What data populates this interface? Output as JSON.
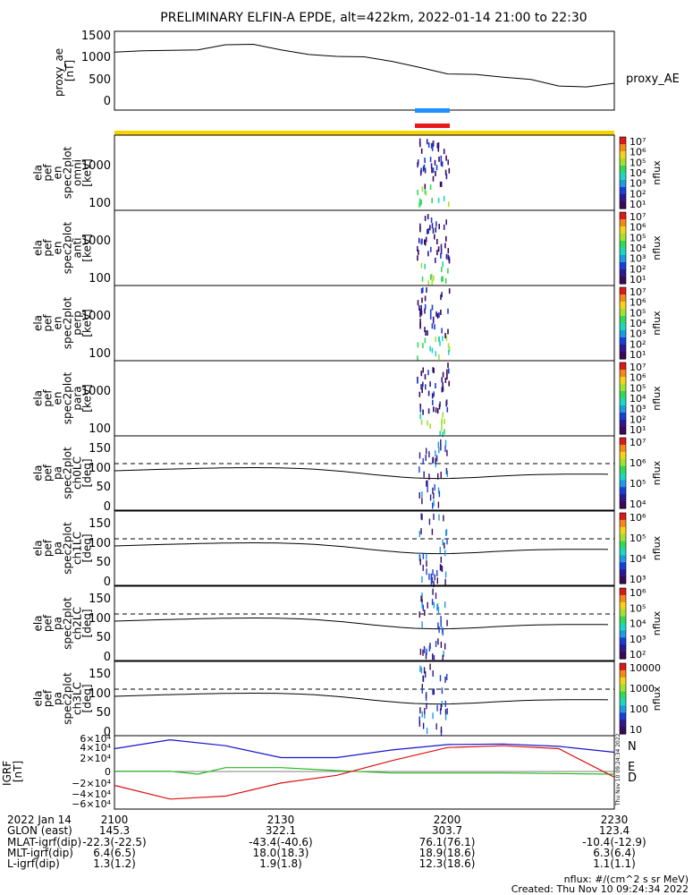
{
  "title": "PRELIMINARY ELFIN-A EPDE, alt=422km, 2022-01-14 21:00 to 22:30",
  "colors": {
    "bar_blue": "#1e90ff",
    "bar_red": "#e81b1b",
    "bar_yellow": "#f5d400",
    "mag_n": "#1515cc",
    "mag_e": "#22bb22",
    "mag_d": "#dd1111"
  },
  "ae_panel": {
    "ylabel_lines": [
      "proxy_ae",
      "[nT]"
    ],
    "yticks": [
      "1500",
      "1000",
      "500",
      "0"
    ],
    "ylim": [
      -100,
      1600
    ],
    "series_label": "proxy_AE"
  },
  "spec_panels": [
    {
      "ylabel_lines": [
        "ela",
        "pef",
        "en",
        "spec2plot",
        "omni",
        "[keV]"
      ],
      "yticks": [
        "1000",
        "100"
      ],
      "cbar_ticks": [
        "10⁷",
        "10⁶",
        "10⁵",
        "10⁴",
        "10³",
        "10²",
        "10¹"
      ],
      "cbar_label": "nflux"
    },
    {
      "ylabel_lines": [
        "ela",
        "pef",
        "en",
        "spec2plot",
        "anti",
        "[keV]"
      ],
      "yticks": [
        "1000",
        "100"
      ],
      "cbar_ticks": [
        "10⁷",
        "10⁶",
        "10⁵",
        "10⁴",
        "10³",
        "10²",
        "10¹"
      ],
      "cbar_label": "nflux"
    },
    {
      "ylabel_lines": [
        "ela",
        "pef",
        "en",
        "spec2plot",
        "perp",
        "[keV]"
      ],
      "yticks": [
        "1000",
        "100"
      ],
      "cbar_ticks": [
        "10⁷",
        "10⁶",
        "10⁵",
        "10⁴",
        "10³",
        "10²",
        "10¹"
      ],
      "cbar_label": "nflux"
    },
    {
      "ylabel_lines": [
        "ela",
        "pef",
        "en",
        "spec2plot",
        "para",
        "[keV]"
      ],
      "yticks": [
        "1000",
        "100"
      ],
      "cbar_ticks": [
        "10⁷",
        "10⁶",
        "10⁵",
        "10⁴",
        "10³",
        "10²",
        "10¹"
      ],
      "cbar_label": "nflux"
    }
  ],
  "pa_panels": [
    {
      "ylabel_lines": [
        "ela",
        "pef",
        "pa",
        "spec2plot",
        "ch0LC",
        "[deg]"
      ],
      "yticks": [
        "150",
        "100",
        "50",
        "0"
      ],
      "cbar_ticks": [
        "10⁷",
        "10⁶",
        "10⁵",
        "10⁴"
      ],
      "cbar_label": "nflux"
    },
    {
      "ylabel_lines": [
        "ela",
        "pef",
        "pa",
        "spec2plot",
        "ch1LC",
        "[deg]"
      ],
      "yticks": [
        "150",
        "100",
        "50",
        "0"
      ],
      "cbar_ticks": [
        "10⁶",
        "10⁵",
        "10⁴",
        "10³"
      ],
      "cbar_label": "nflux"
    },
    {
      "ylabel_lines": [
        "ela",
        "pef",
        "pa",
        "spec2plot",
        "ch2LC",
        "[deg]"
      ],
      "yticks": [
        "150",
        "100",
        "50",
        "0"
      ],
      "cbar_ticks": [
        "10⁶",
        "10⁵",
        "10⁴",
        "10³",
        "10²"
      ],
      "cbar_label": "nflux"
    },
    {
      "ylabel_lines": [
        "ela",
        "pef",
        "pa",
        "spec2plot",
        "ch3LC",
        "[deg]"
      ],
      "yticks": [
        "150",
        "100",
        "50",
        "0"
      ],
      "cbar_ticks": [
        "10000",
        "1000",
        "100",
        "10"
      ],
      "cbar_label": "nflux"
    }
  ],
  "mag_panel": {
    "ylabel_lines": [
      "IGRF",
      "[nT]"
    ],
    "yticks": [
      "6×10⁴",
      "4×10⁴",
      "2×10⁴",
      "0",
      "−2×10⁴",
      "−4×10⁴",
      "−6×10⁴"
    ],
    "ylim": [
      -62000,
      62000
    ],
    "series_labels": [
      "N",
      "E",
      "D"
    ],
    "side_text": "Thu Nov 10 09:24:34 2022"
  },
  "orbit_table": {
    "rows": [
      [
        "2022 Jan 14",
        "2100",
        "2130",
        "2200",
        "2230"
      ],
      [
        "GLON (east)",
        "145.3",
        "322.1",
        "303.7",
        "123.4"
      ],
      [
        "MLAT-igrf(dip)",
        "-22.3(-22.5)",
        "-43.4(-40.6)",
        "76.1(76.1)",
        "-10.4(-12.9)"
      ],
      [
        "MLT-igrf(dip)",
        "6.4(6.5)",
        "18.0(18.3)",
        "18.9(18.6)",
        "6.3(6.4)"
      ],
      [
        "L-igrf(dip)",
        "1.3(1.2)",
        "1.9(1.8)",
        "12.3(18.6)",
        "1.1(1.1)"
      ]
    ]
  },
  "footer": {
    "units": "nflux: #/(cm^2 s sr MeV)",
    "created": "Created: Thu Nov 10 09:24:34 2022"
  },
  "chart_data": {
    "type": "line",
    "title": "PRELIMINARY ELFIN-A EPDE, alt=422km, 2022-01-14 21:00 to 22:30",
    "x_ticks": [
      "2100",
      "2130",
      "2200",
      "2230"
    ],
    "xlim": [
      "21:00",
      "22:30"
    ],
    "series": [
      {
        "name": "proxy_AE",
        "x": [
          "21:00",
          "21:05",
          "21:10",
          "21:15",
          "21:20",
          "21:25",
          "21:30",
          "21:35",
          "21:40",
          "21:45",
          "21:50",
          "21:55",
          "22:00",
          "22:05",
          "22:10",
          "22:15",
          "22:20",
          "22:25",
          "22:30"
        ],
        "values": [
          1150,
          1180,
          1190,
          1200,
          1310,
          1320,
          1200,
          1100,
          1060,
          1050,
          950,
          820,
          680,
          670,
          610,
          560,
          420,
          400,
          480
        ]
      },
      {
        "name": "N",
        "x": [
          "21:00",
          "21:10",
          "21:20",
          "21:30",
          "21:40",
          "21:50",
          "22:00",
          "22:10",
          "22:20",
          "22:30"
        ],
        "values": [
          40000,
          55000,
          45000,
          25000,
          25000,
          38000,
          47000,
          48000,
          44000,
          34000
        ]
      },
      {
        "name": "E",
        "x": [
          "21:00",
          "21:10",
          "21:15",
          "21:20",
          "21:30",
          "21:40",
          "21:50",
          "22:00",
          "22:10",
          "22:20",
          "22:30"
        ],
        "values": [
          2000,
          2000,
          -3000,
          8000,
          8000,
          3000,
          -1000,
          -1000,
          -1000,
          -2000,
          -3000
        ]
      },
      {
        "name": "D",
        "x": [
          "21:00",
          "21:10",
          "21:20",
          "21:30",
          "21:40",
          "21:50",
          "22:00",
          "22:10",
          "22:20",
          "22:30"
        ],
        "values": [
          -22000,
          -45000,
          -40000,
          -18000,
          -5000,
          20000,
          42000,
          45000,
          40000,
          -8000
        ]
      }
    ]
  }
}
